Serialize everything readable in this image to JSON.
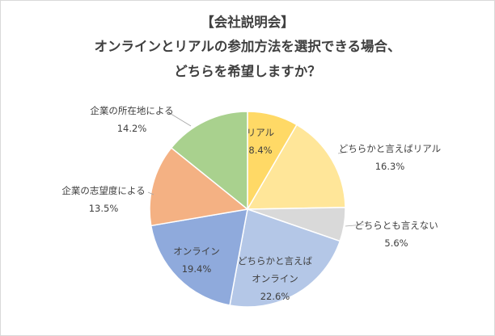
{
  "chart_data": {
    "type": "pie",
    "title_lines": [
      "【会社説明会】",
      "オンラインとリアルの参加方法を選択できる場合、",
      "どちらを希望しますか？"
    ],
    "slices": [
      {
        "label_lines": [
          "リアル"
        ],
        "value_text": "8.4%",
        "value": 8.4,
        "color": "#FFD966"
      },
      {
        "label_lines": [
          "どちらかと言えばリアル"
        ],
        "value_text": "16.3%",
        "value": 16.3,
        "color": "#FFE699"
      },
      {
        "label_lines": [
          "どちらとも言えない"
        ],
        "value_text": "5.6%",
        "value": 5.6,
        "color": "#D9D9D9"
      },
      {
        "label_lines": [
          "どちらかと言えば",
          "オンライン"
        ],
        "value_text": "22.6%",
        "value": 22.6,
        "color": "#B4C7E7"
      },
      {
        "label_lines": [
          "オンライン"
        ],
        "value_text": "19.4%",
        "value": 19.4,
        "color": "#8FAADC"
      },
      {
        "label_lines": [
          "企業の志望度による"
        ],
        "value_text": "13.5%",
        "value": 13.5,
        "color": "#F4B183"
      },
      {
        "label_lines": [
          "企業の所在地による"
        ],
        "value_text": "14.2%",
        "value": 14.2,
        "color": "#A9D18E"
      }
    ],
    "start_angle_deg": 0,
    "direction": "clockwise",
    "legend": "none",
    "data_labels": "category-and-value"
  }
}
